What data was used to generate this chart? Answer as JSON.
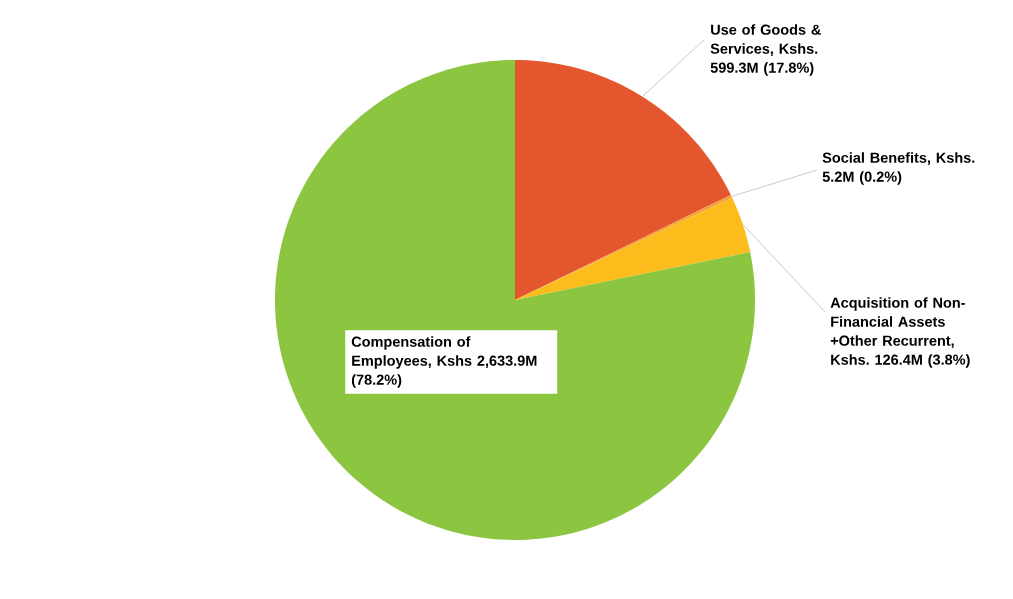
{
  "chart_data": {
    "type": "pie",
    "categories": [
      "Use of Goods & Services, Kshs. 599.3M (17.8%)",
      "Social Benefits, Kshs. 5.2M (0.2%)",
      "Acquisition of Non-Financial Assets +Other Recurrent, Kshs. 126.4M (3.8%)",
      "Compensation of Employees, Kshs 2,633.9M (78.2%)"
    ],
    "values": [
      17.8,
      0.2,
      3.8,
      78.2
    ],
    "colors": [
      "#e4572e",
      "#f2a33a",
      "#fbbc1c",
      "#8cc540"
    ]
  }
}
